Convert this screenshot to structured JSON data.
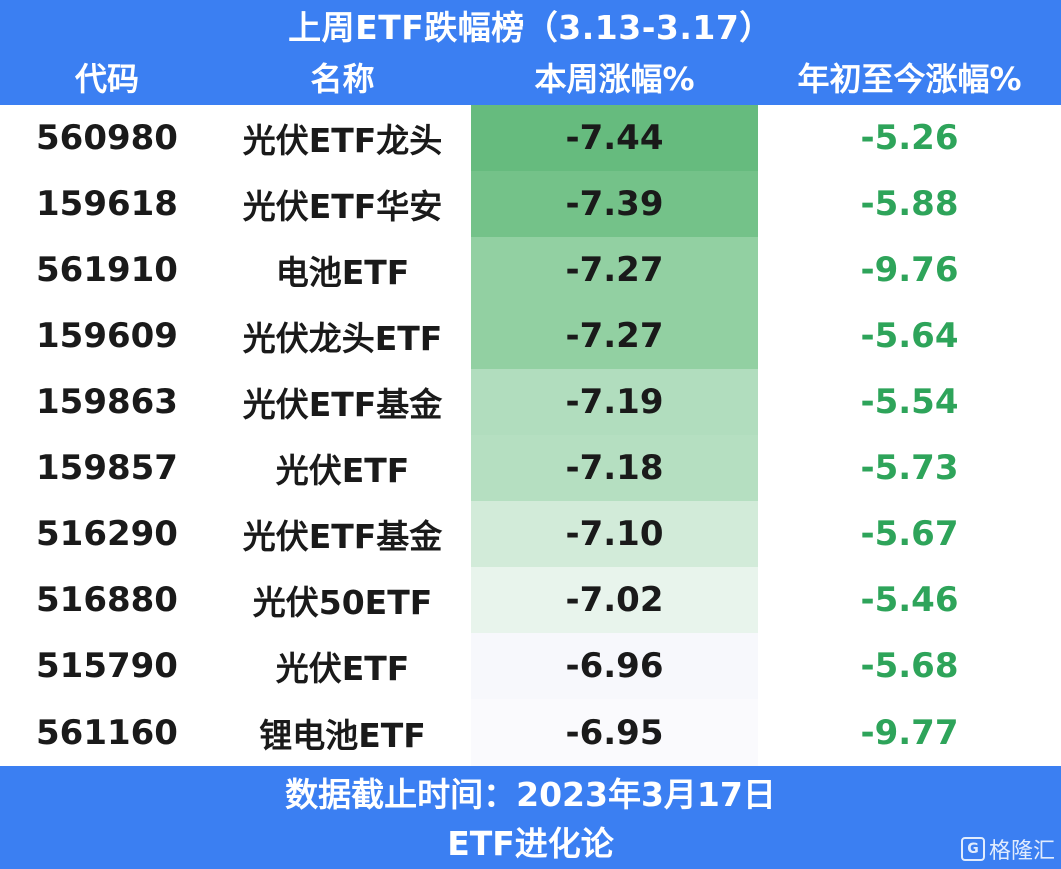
{
  "header": {
    "title": "上周ETF跌幅榜（3.13-3.17）",
    "columns": [
      "代码",
      "名称",
      "本周涨幅%",
      "年初至今涨幅%"
    ]
  },
  "rows": [
    {
      "code": "560980",
      "name": "光伏ETF龙头",
      "weekly": "-7.44",
      "ytd": "-5.26",
      "shade": "#66bb7e"
    },
    {
      "code": "159618",
      "name": "光伏ETF华安",
      "weekly": "-7.39",
      "ytd": "-5.88",
      "shade": "#74c289"
    },
    {
      "code": "561910",
      "name": "电池ETF",
      "weekly": "-7.27",
      "ytd": "-9.76",
      "shade": "#92d0a2"
    },
    {
      "code": "159609",
      "name": "光伏龙头ETF",
      "weekly": "-7.27",
      "ytd": "-5.64",
      "shade": "#92d0a2"
    },
    {
      "code": "159863",
      "name": "光伏ETF基金",
      "weekly": "-7.19",
      "ytd": "-5.54",
      "shade": "#b1ddbe"
    },
    {
      "code": "159857",
      "name": "光伏ETF",
      "weekly": "-7.18",
      "ytd": "-5.73",
      "shade": "#b5dfc1"
    },
    {
      "code": "516290",
      "name": "光伏ETF基金",
      "weekly": "-7.10",
      "ytd": "-5.67",
      "shade": "#d2ebd9"
    },
    {
      "code": "516880",
      "name": "光伏50ETF",
      "weekly": "-7.02",
      "ytd": "-5.46",
      "shade": "#e8f4ec"
    },
    {
      "code": "515790",
      "name": "光伏ETF",
      "weekly": "-6.96",
      "ytd": "-5.68",
      "shade": "#f7f8fc"
    },
    {
      "code": "561160",
      "name": "锂电池ETF",
      "weekly": "-6.95",
      "ytd": "-9.77",
      "shade": "#fafafd"
    }
  ],
  "footer": {
    "line1": "数据截止时间：2023年3月17日",
    "line2": "ETF进化论"
  },
  "watermark": {
    "text": "格隆汇",
    "icon": "gelonghui-logo-icon"
  },
  "colors": {
    "header_bg": "#3b7ff2",
    "ytd_text": "#2ea45a"
  }
}
